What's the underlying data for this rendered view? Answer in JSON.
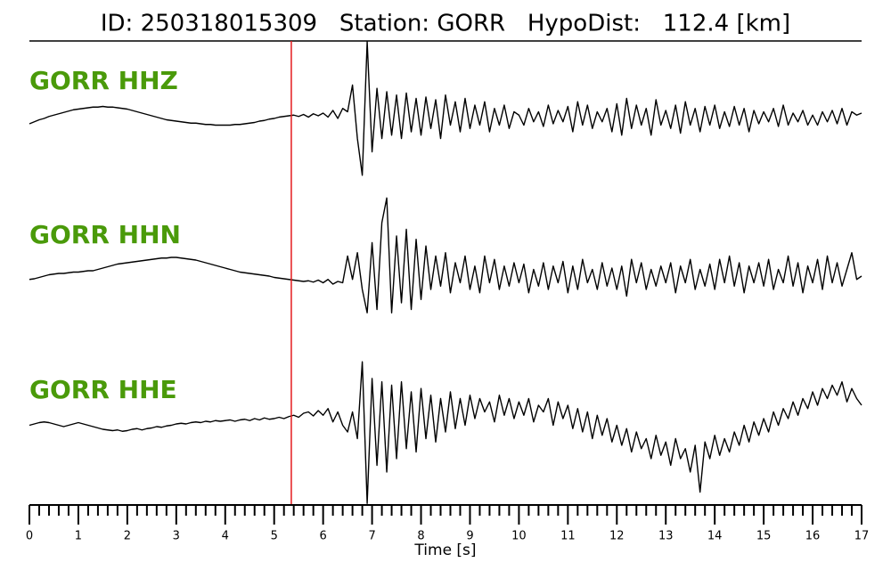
{
  "chart_data": {
    "type": "line",
    "title": "ID: 250318015309   Station: GORR   HypoDist:   112.4 [km]",
    "xlabel": "Time [s]",
    "xlim": [
      0,
      17
    ],
    "xticks": [
      0,
      1,
      2,
      3,
      4,
      5,
      6,
      7,
      8,
      9,
      10,
      11,
      12,
      13,
      14,
      15,
      16,
      17
    ],
    "minor_tick_step": 0.2,
    "pick_time": 5.35,
    "pick_color": "#e41a1c",
    "label_color": "#4a9a0a",
    "x": [
      0,
      0.1,
      0.2,
      0.3,
      0.4,
      0.5,
      0.6,
      0.7,
      0.8,
      0.9,
      1,
      1.1,
      1.2,
      1.3,
      1.4,
      1.5,
      1.6,
      1.7,
      1.8,
      1.9,
      2,
      2.1,
      2.2,
      2.3,
      2.4,
      2.5,
      2.6,
      2.7,
      2.8,
      2.9,
      3,
      3.1,
      3.2,
      3.3,
      3.4,
      3.5,
      3.6,
      3.7,
      3.8,
      3.9,
      4,
      4.1,
      4.2,
      4.3,
      4.4,
      4.5,
      4.6,
      4.7,
      4.8,
      4.9,
      5,
      5.1,
      5.2,
      5.3,
      5.4,
      5.5,
      5.6,
      5.7,
      5.8,
      5.9,
      6,
      6.1,
      6.2,
      6.3,
      6.4,
      6.5,
      6.6,
      6.7,
      6.8,
      6.9,
      7,
      7.1,
      7.2,
      7.3,
      7.4,
      7.5,
      7.6,
      7.7,
      7.8,
      7.9,
      8,
      8.1,
      8.2,
      8.3,
      8.4,
      8.5,
      8.6,
      8.7,
      8.8,
      8.9,
      9,
      9.1,
      9.2,
      9.3,
      9.4,
      9.5,
      9.6,
      9.7,
      9.8,
      9.9,
      10,
      10.1,
      10.2,
      10.3,
      10.4,
      10.5,
      10.6,
      10.7,
      10.8,
      10.9,
      11,
      11.1,
      11.2,
      11.3,
      11.4,
      11.5,
      11.6,
      11.7,
      11.8,
      11.9,
      12,
      12.1,
      12.2,
      12.3,
      12.4,
      12.5,
      12.6,
      12.7,
      12.8,
      12.9,
      13,
      13.1,
      13.2,
      13.3,
      13.4,
      13.5,
      13.6,
      13.7,
      13.8,
      13.9,
      14,
      14.1,
      14.2,
      14.3,
      14.4,
      14.5,
      14.6,
      14.7,
      14.8,
      14.9,
      15,
      15.1,
      15.2,
      15.3,
      15.4,
      15.5,
      15.6,
      15.7,
      15.8,
      15.9,
      16,
      16.1,
      16.2,
      16.3,
      16.4,
      16.5,
      16.6,
      16.7,
      16.8,
      16.9,
      17
    ],
    "series": [
      {
        "name": "GORR HHZ",
        "color": "#000000",
        "values": [
          -0.08,
          -0.05,
          -0.02,
          0.0,
          0.03,
          0.05,
          0.07,
          0.09,
          0.11,
          0.13,
          0.14,
          0.15,
          0.16,
          0.17,
          0.17,
          0.18,
          0.17,
          0.17,
          0.16,
          0.15,
          0.14,
          0.12,
          0.1,
          0.08,
          0.06,
          0.04,
          0.02,
          0.0,
          -0.02,
          -0.03,
          -0.04,
          -0.05,
          -0.06,
          -0.07,
          -0.07,
          -0.08,
          -0.09,
          -0.09,
          -0.1,
          -0.1,
          -0.1,
          -0.1,
          -0.09,
          -0.09,
          -0.08,
          -0.07,
          -0.06,
          -0.04,
          -0.03,
          -0.01,
          0.0,
          0.02,
          0.03,
          0.04,
          0.05,
          0.03,
          0.06,
          0.02,
          0.07,
          0.04,
          0.08,
          0.02,
          0.12,
          0.0,
          0.15,
          0.1,
          0.5,
          -0.3,
          -0.85,
          1.15,
          -0.5,
          0.45,
          -0.3,
          0.4,
          -0.25,
          0.35,
          -0.3,
          0.38,
          -0.2,
          0.3,
          -0.25,
          0.32,
          -0.15,
          0.28,
          -0.3,
          0.35,
          -0.1,
          0.25,
          -0.2,
          0.3,
          -0.15,
          0.2,
          -0.1,
          0.25,
          -0.2,
          0.15,
          -0.1,
          0.2,
          -0.15,
          0.1,
          0.05,
          -0.1,
          0.15,
          -0.05,
          0.1,
          -0.12,
          0.2,
          -0.08,
          0.12,
          -0.05,
          0.18,
          -0.2,
          0.25,
          -0.1,
          0.2,
          -0.15,
          0.1,
          -0.05,
          0.15,
          -0.2,
          0.22,
          -0.25,
          0.3,
          -0.15,
          0.2,
          -0.1,
          0.15,
          -0.25,
          0.28,
          -0.1,
          0.12,
          -0.15,
          0.2,
          -0.22,
          0.25,
          -0.1,
          0.15,
          -0.2,
          0.18,
          -0.1,
          0.2,
          -0.15,
          0.1,
          -0.12,
          0.18,
          -0.1,
          0.15,
          -0.2,
          0.12,
          -0.08,
          0.1,
          -0.05,
          0.15,
          -0.12,
          0.2,
          -0.1,
          0.08,
          -0.05,
          0.12,
          -0.1,
          0.05,
          -0.1,
          0.1,
          -0.05,
          0.12,
          -0.08,
          0.15,
          -0.1,
          0.1,
          0.05,
          0.08
        ]
      },
      {
        "name": "GORR HHN",
        "color": "#000000",
        "values": [
          -0.05,
          -0.04,
          -0.02,
          0.0,
          0.02,
          0.03,
          0.04,
          0.04,
          0.05,
          0.06,
          0.06,
          0.07,
          0.08,
          0.08,
          0.1,
          0.12,
          0.14,
          0.16,
          0.18,
          0.19,
          0.2,
          0.21,
          0.22,
          0.23,
          0.24,
          0.25,
          0.26,
          0.27,
          0.27,
          0.28,
          0.28,
          0.27,
          0.26,
          0.25,
          0.24,
          0.22,
          0.2,
          0.18,
          0.16,
          0.14,
          0.12,
          0.1,
          0.08,
          0.06,
          0.05,
          0.04,
          0.03,
          0.02,
          0.01,
          0.0,
          -0.02,
          -0.03,
          -0.04,
          -0.05,
          -0.06,
          -0.07,
          -0.08,
          -0.07,
          -0.09,
          -0.06,
          -0.1,
          -0.05,
          -0.12,
          -0.08,
          -0.1,
          0.3,
          -0.05,
          0.35,
          -0.2,
          -0.55,
          0.5,
          -0.5,
          0.8,
          1.17,
          -0.55,
          0.6,
          -0.4,
          0.7,
          -0.5,
          0.55,
          -0.35,
          0.45,
          -0.2,
          0.3,
          -0.15,
          0.35,
          -0.25,
          0.2,
          -0.1,
          0.3,
          -0.2,
          0.15,
          -0.25,
          0.3,
          -0.1,
          0.25,
          -0.2,
          0.15,
          -0.15,
          0.2,
          -0.1,
          0.18,
          -0.25,
          0.1,
          -0.15,
          0.2,
          -0.2,
          0.15,
          -0.1,
          0.22,
          -0.25,
          0.15,
          -0.2,
          0.25,
          -0.1,
          0.1,
          -0.2,
          0.2,
          -0.15,
          0.12,
          -0.2,
          0.15,
          -0.3,
          0.25,
          -0.1,
          0.2,
          -0.2,
          0.1,
          -0.15,
          0.15,
          -0.1,
          0.2,
          -0.25,
          0.15,
          -0.1,
          0.25,
          -0.2,
          0.1,
          -0.15,
          0.18,
          -0.2,
          0.25,
          -0.1,
          0.3,
          -0.15,
          0.2,
          -0.25,
          0.15,
          -0.1,
          0.2,
          -0.15,
          0.25,
          -0.2,
          0.1,
          -0.1,
          0.3,
          -0.15,
          0.2,
          -0.25,
          0.15,
          -0.1,
          0.25,
          -0.2,
          0.3,
          -0.1,
          0.2,
          -0.15,
          0.1,
          0.35,
          -0.05,
          0.0
        ]
      },
      {
        "name": "GORR HHE",
        "color": "#000000",
        "values": [
          -0.1,
          -0.08,
          -0.06,
          -0.05,
          -0.06,
          -0.08,
          -0.1,
          -0.12,
          -0.1,
          -0.08,
          -0.06,
          -0.08,
          -0.1,
          -0.12,
          -0.14,
          -0.16,
          -0.17,
          -0.18,
          -0.17,
          -0.19,
          -0.18,
          -0.16,
          -0.15,
          -0.17,
          -0.15,
          -0.14,
          -0.12,
          -0.13,
          -0.11,
          -0.1,
          -0.08,
          -0.07,
          -0.08,
          -0.06,
          -0.05,
          -0.06,
          -0.04,
          -0.05,
          -0.03,
          -0.04,
          -0.03,
          -0.02,
          -0.04,
          -0.02,
          -0.01,
          -0.03,
          0.0,
          -0.02,
          0.01,
          -0.01,
          0.0,
          0.02,
          0.0,
          0.03,
          0.05,
          0.02,
          0.08,
          0.1,
          0.04,
          0.12,
          0.05,
          0.15,
          -0.05,
          0.1,
          -0.1,
          -0.2,
          0.1,
          -0.3,
          0.85,
          -1.27,
          0.6,
          -0.7,
          0.55,
          -0.8,
          0.5,
          -0.6,
          0.55,
          -0.45,
          0.4,
          -0.5,
          0.45,
          -0.3,
          0.35,
          -0.35,
          0.3,
          -0.2,
          0.4,
          -0.15,
          0.3,
          -0.1,
          0.35,
          0.0,
          0.3,
          0.1,
          0.25,
          -0.05,
          0.35,
          0.05,
          0.3,
          0.0,
          0.25,
          0.05,
          0.3,
          -0.05,
          0.2,
          0.1,
          0.3,
          -0.1,
          0.25,
          0.0,
          0.2,
          -0.15,
          0.15,
          -0.2,
          0.1,
          -0.3,
          0.05,
          -0.25,
          0.0,
          -0.35,
          -0.1,
          -0.4,
          -0.15,
          -0.5,
          -0.2,
          -0.45,
          -0.3,
          -0.6,
          -0.25,
          -0.55,
          -0.35,
          -0.7,
          -0.3,
          -0.6,
          -0.45,
          -0.8,
          -0.4,
          -1.1,
          -0.35,
          -0.6,
          -0.25,
          -0.55,
          -0.3,
          -0.5,
          -0.2,
          -0.4,
          -0.1,
          -0.35,
          -0.05,
          -0.25,
          0.0,
          -0.2,
          0.1,
          -0.1,
          0.15,
          0.0,
          0.25,
          0.05,
          0.3,
          0.15,
          0.4,
          0.2,
          0.45,
          0.3,
          0.5,
          0.35,
          0.55,
          0.25,
          0.45,
          0.3,
          0.2
        ]
      }
    ]
  }
}
